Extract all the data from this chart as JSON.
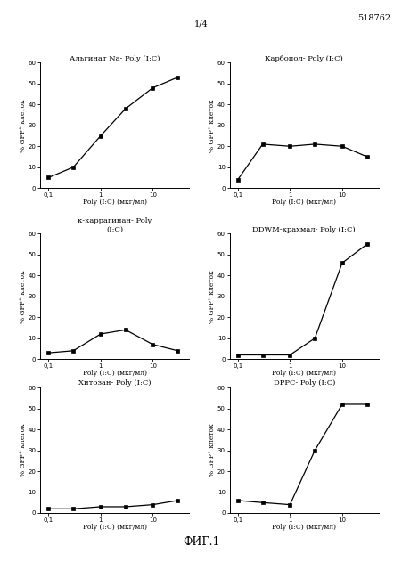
{
  "page_label": "1/4",
  "patent_number": "518762",
  "figure_label": "ФИГ.1",
  "background_color": "#ffffff",
  "plots": [
    {
      "title": "Альгинат Na- Poly (I:C)",
      "x": [
        0.1,
        0.3,
        1,
        3,
        10,
        30
      ],
      "y": [
        5,
        10,
        25,
        38,
        48,
        53
      ],
      "ylim": [
        0,
        60
      ],
      "xlabel": "Poly (I:C) (мкг/мл)",
      "ylabel": "% GFP⁺ клеток"
    },
    {
      "title": "Карбопол- Poly (I:C)",
      "x": [
        0.1,
        0.3,
        1,
        3,
        10,
        30
      ],
      "y": [
        4,
        21,
        20,
        21,
        20,
        15
      ],
      "ylim": [
        0,
        60
      ],
      "xlabel": "Poly (I:C) (мкг/мл)",
      "ylabel": "% GFP⁺ клеток"
    },
    {
      "title": "к-каррагинан- Poly\n(I:C)",
      "x": [
        0.1,
        0.3,
        1,
        3,
        10,
        30
      ],
      "y": [
        3,
        4,
        12,
        14,
        7,
        4
      ],
      "ylim": [
        0,
        60
      ],
      "xlabel": "Poly (I:C) (мкг/мл)",
      "ylabel": "% GFP⁺ клеток"
    },
    {
      "title": "DDWM-крахмал- Poly (I:C)",
      "x": [
        0.1,
        0.3,
        1,
        3,
        10,
        30
      ],
      "y": [
        2,
        2,
        2,
        10,
        46,
        55
      ],
      "ylim": [
        0,
        60
      ],
      "xlabel": "Poly (I:C) (мкг/мл)",
      "ylabel": "% GFP⁺ клеток"
    },
    {
      "title": "Хитозан- Poly (I:C)",
      "x": [
        0.1,
        0.3,
        1,
        3,
        10,
        30
      ],
      "y": [
        2,
        2,
        3,
        3,
        4,
        6
      ],
      "ylim": [
        0,
        60
      ],
      "xlabel": "Poly (I:C) (мкг/мл)",
      "ylabel": "% GFP⁺ клеток"
    },
    {
      "title": "DPPC- Poly (I:C)",
      "x": [
        0.1,
        0.3,
        1,
        3,
        10,
        30
      ],
      "y": [
        6,
        5,
        4,
        30,
        52,
        52
      ],
      "ylim": [
        0,
        60
      ],
      "xlabel": "Poly (I:C) (мкг/мл)",
      "ylabel": "% GFP⁺ клеток"
    }
  ]
}
